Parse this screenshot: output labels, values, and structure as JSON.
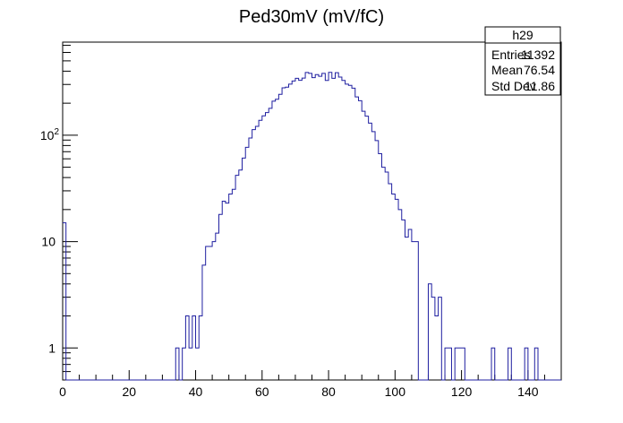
{
  "chart_data": {
    "type": "histogram",
    "title": "Ped30mV (mV/fC)",
    "xlabel": "",
    "ylabel": "",
    "xlim": [
      0,
      150
    ],
    "ylim": [
      0.5,
      750
    ],
    "yscale": "log",
    "x_ticks": [
      0,
      20,
      40,
      60,
      80,
      100,
      120,
      140
    ],
    "y_ticks": [
      {
        "value": 1,
        "label": "1"
      },
      {
        "value": 10,
        "label": "10"
      },
      {
        "value": 100,
        "label": "10",
        "exponent": "2"
      }
    ],
    "bin_width": 1,
    "line_color": "#1f1fa0",
    "bins": [
      {
        "x": 0,
        "y": 15
      },
      {
        "x": 1,
        "y": 0
      },
      {
        "x": 2,
        "y": 0
      },
      {
        "x": 3,
        "y": 0
      },
      {
        "x": 4,
        "y": 0
      },
      {
        "x": 5,
        "y": 0
      },
      {
        "x": 6,
        "y": 0
      },
      {
        "x": 7,
        "y": 0
      },
      {
        "x": 8,
        "y": 0
      },
      {
        "x": 9,
        "y": 0
      },
      {
        "x": 10,
        "y": 0
      },
      {
        "x": 11,
        "y": 0
      },
      {
        "x": 12,
        "y": 0
      },
      {
        "x": 13,
        "y": 0
      },
      {
        "x": 14,
        "y": 0
      },
      {
        "x": 15,
        "y": 0
      },
      {
        "x": 16,
        "y": 0
      },
      {
        "x": 17,
        "y": 0
      },
      {
        "x": 18,
        "y": 0
      },
      {
        "x": 19,
        "y": 0
      },
      {
        "x": 20,
        "y": 0
      },
      {
        "x": 21,
        "y": 0
      },
      {
        "x": 22,
        "y": 0
      },
      {
        "x": 23,
        "y": 0
      },
      {
        "x": 24,
        "y": 0
      },
      {
        "x": 25,
        "y": 0
      },
      {
        "x": 26,
        "y": 0
      },
      {
        "x": 27,
        "y": 0
      },
      {
        "x": 28,
        "y": 0
      },
      {
        "x": 29,
        "y": 0
      },
      {
        "x": 30,
        "y": 0
      },
      {
        "x": 31,
        "y": 0
      },
      {
        "x": 32,
        "y": 0
      },
      {
        "x": 33,
        "y": 0
      },
      {
        "x": 34,
        "y": 1
      },
      {
        "x": 35,
        "y": 0
      },
      {
        "x": 36,
        "y": 1
      },
      {
        "x": 37,
        "y": 2
      },
      {
        "x": 38,
        "y": 1
      },
      {
        "x": 39,
        "y": 2
      },
      {
        "x": 40,
        "y": 1
      },
      {
        "x": 41,
        "y": 2
      },
      {
        "x": 42,
        "y": 6
      },
      {
        "x": 43,
        "y": 9
      },
      {
        "x": 44,
        "y": 9
      },
      {
        "x": 45,
        "y": 10
      },
      {
        "x": 46,
        "y": 12
      },
      {
        "x": 47,
        "y": 18
      },
      {
        "x": 48,
        "y": 24
      },
      {
        "x": 49,
        "y": 23
      },
      {
        "x": 50,
        "y": 28
      },
      {
        "x": 51,
        "y": 31
      },
      {
        "x": 52,
        "y": 42
      },
      {
        "x": 53,
        "y": 47
      },
      {
        "x": 54,
        "y": 61
      },
      {
        "x": 55,
        "y": 77
      },
      {
        "x": 56,
        "y": 94
      },
      {
        "x": 57,
        "y": 113
      },
      {
        "x": 58,
        "y": 121
      },
      {
        "x": 59,
        "y": 138
      },
      {
        "x": 60,
        "y": 152
      },
      {
        "x": 61,
        "y": 163
      },
      {
        "x": 62,
        "y": 179
      },
      {
        "x": 63,
        "y": 209
      },
      {
        "x": 64,
        "y": 218
      },
      {
        "x": 65,
        "y": 242
      },
      {
        "x": 66,
        "y": 279
      },
      {
        "x": 67,
        "y": 283
      },
      {
        "x": 68,
        "y": 302
      },
      {
        "x": 69,
        "y": 323
      },
      {
        "x": 70,
        "y": 343
      },
      {
        "x": 71,
        "y": 328
      },
      {
        "x": 72,
        "y": 344
      },
      {
        "x": 73,
        "y": 389
      },
      {
        "x": 74,
        "y": 381
      },
      {
        "x": 75,
        "y": 348
      },
      {
        "x": 76,
        "y": 371
      },
      {
        "x": 77,
        "y": 358
      },
      {
        "x": 78,
        "y": 381
      },
      {
        "x": 79,
        "y": 327
      },
      {
        "x": 80,
        "y": 390
      },
      {
        "x": 81,
        "y": 343
      },
      {
        "x": 82,
        "y": 387
      },
      {
        "x": 83,
        "y": 352
      },
      {
        "x": 84,
        "y": 327
      },
      {
        "x": 85,
        "y": 302
      },
      {
        "x": 86,
        "y": 294
      },
      {
        "x": 87,
        "y": 277
      },
      {
        "x": 88,
        "y": 229
      },
      {
        "x": 89,
        "y": 211
      },
      {
        "x": 90,
        "y": 168
      },
      {
        "x": 91,
        "y": 151
      },
      {
        "x": 92,
        "y": 130
      },
      {
        "x": 93,
        "y": 108
      },
      {
        "x": 94,
        "y": 89
      },
      {
        "x": 95,
        "y": 67
      },
      {
        "x": 96,
        "y": 50
      },
      {
        "x": 97,
        "y": 45
      },
      {
        "x": 98,
        "y": 35
      },
      {
        "x": 99,
        "y": 28
      },
      {
        "x": 100,
        "y": 25
      },
      {
        "x": 101,
        "y": 20
      },
      {
        "x": 102,
        "y": 16
      },
      {
        "x": 103,
        "y": 11
      },
      {
        "x": 104,
        "y": 13
      },
      {
        "x": 105,
        "y": 10
      },
      {
        "x": 106,
        "y": 10
      },
      {
        "x": 107,
        "y": 0
      },
      {
        "x": 108,
        "y": 0
      },
      {
        "x": 109,
        "y": 0
      },
      {
        "x": 110,
        "y": 4
      },
      {
        "x": 111,
        "y": 3
      },
      {
        "x": 112,
        "y": 2
      },
      {
        "x": 113,
        "y": 3
      },
      {
        "x": 114,
        "y": 0
      },
      {
        "x": 115,
        "y": 1
      },
      {
        "x": 116,
        "y": 1
      },
      {
        "x": 117,
        "y": 0
      },
      {
        "x": 118,
        "y": 1
      },
      {
        "x": 119,
        "y": 1
      },
      {
        "x": 120,
        "y": 1
      },
      {
        "x": 121,
        "y": 0
      },
      {
        "x": 122,
        "y": 0
      },
      {
        "x": 123,
        "y": 0
      },
      {
        "x": 124,
        "y": 0
      },
      {
        "x": 125,
        "y": 0
      },
      {
        "x": 126,
        "y": 0
      },
      {
        "x": 127,
        "y": 0
      },
      {
        "x": 128,
        "y": 0
      },
      {
        "x": 129,
        "y": 1
      },
      {
        "x": 130,
        "y": 0
      },
      {
        "x": 131,
        "y": 0
      },
      {
        "x": 132,
        "y": 0
      },
      {
        "x": 133,
        "y": 0
      },
      {
        "x": 134,
        "y": 1
      },
      {
        "x": 135,
        "y": 0
      },
      {
        "x": 136,
        "y": 0
      },
      {
        "x": 137,
        "y": 0
      },
      {
        "x": 138,
        "y": 0
      },
      {
        "x": 139,
        "y": 1
      },
      {
        "x": 140,
        "y": 0
      },
      {
        "x": 141,
        "y": 0
      },
      {
        "x": 142,
        "y": 1
      },
      {
        "x": 143,
        "y": 0
      },
      {
        "x": 144,
        "y": 0
      },
      {
        "x": 145,
        "y": 0
      },
      {
        "x": 146,
        "y": 0
      },
      {
        "x": 147,
        "y": 0
      },
      {
        "x": 148,
        "y": 0
      },
      {
        "x": 149,
        "y": 0
      }
    ],
    "stats_box": {
      "name": "h29",
      "rows": [
        {
          "label": "Entries",
          "value": "11392"
        },
        {
          "label": "Mean",
          "value": "76.54"
        },
        {
          "label": "Std Dev",
          "value": "11.86"
        }
      ]
    }
  }
}
